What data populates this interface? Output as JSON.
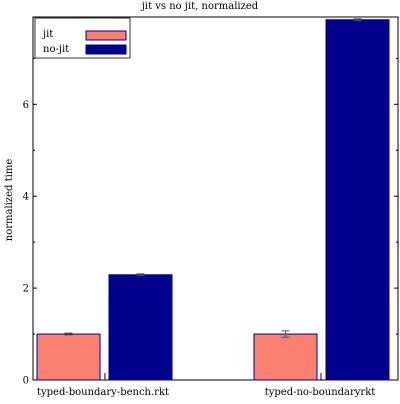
{
  "chart_data": {
    "type": "bar",
    "title": "jit vs no jit, normalized",
    "xlabel": "",
    "ylabel": "normalized time",
    "categories": [
      "typed-boundary-bench.rkt",
      "typed-no-boundaryrkt"
    ],
    "series": [
      {
        "name": "jit",
        "color": "#fa8072",
        "values": [
          1.0,
          1.0
        ],
        "error": [
          0.02,
          0.07
        ]
      },
      {
        "name": "no-jit",
        "color": "#00008b",
        "values": [
          2.29,
          7.84
        ],
        "error": [
          0.02,
          0.02
        ]
      }
    ],
    "ylim": [
      0,
      7.9
    ],
    "yticks": [
      0,
      2,
      4,
      6
    ],
    "ytick_labels": [
      "0",
      "2",
      "4",
      "6"
    ],
    "grid": false,
    "legend_position": "top-left",
    "bar_edge_color": "#00008b"
  }
}
